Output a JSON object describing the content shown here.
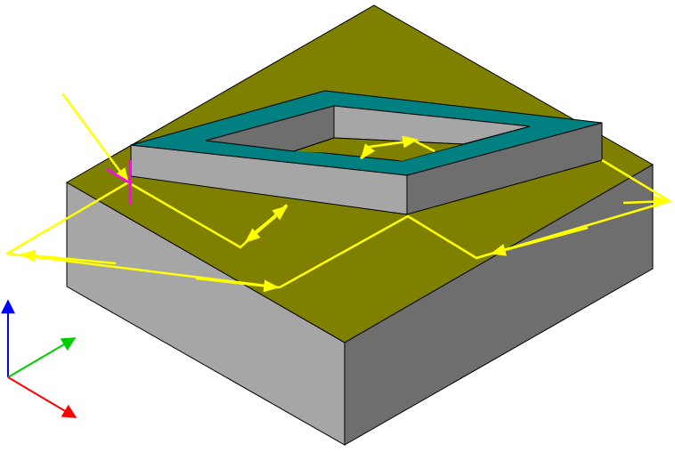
{
  "scene": {
    "background": "#ffffff",
    "colors": {
      "top_face": "#808000",
      "side_left": "#a6a6a6",
      "side_right": "#6e6e6e",
      "frame_top": "#008080",
      "frame_outer_left": "#a6a6a6",
      "frame_outer_right": "#6e6e6e",
      "frame_inner": "#a6a6a6",
      "frame_inner_dark": "#6e6e6e",
      "edge": "#000000",
      "toolpath": "#ffff00",
      "entry_marker": "#ff00ff"
    },
    "axes": {
      "x": {
        "name": "x-axis",
        "color": "#ff0000"
      },
      "y": {
        "name": "y-axis",
        "color": "#00cc00"
      },
      "z": {
        "name": "z-axis",
        "color": "#0000ff"
      }
    },
    "icons": [
      "toolpath-arrow",
      "entry-marker",
      "triad-icon"
    ]
  }
}
